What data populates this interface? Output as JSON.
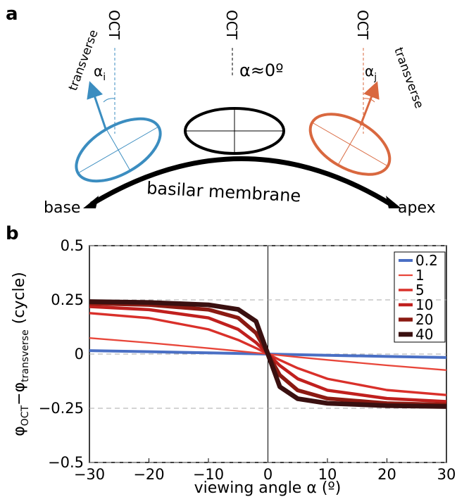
{
  "chart_data": {
    "type": "line",
    "panel_labels": [
      "a",
      "b"
    ],
    "diagram": {
      "oct_labels": [
        "OCT",
        "OCT",
        "OCT"
      ],
      "transverse_labels": [
        "transverse",
        "transverse"
      ],
      "alpha_i": {
        "symbol": "α",
        "sub": "i"
      },
      "alpha_0": "α≈0º",
      "alpha_j": {
        "symbol": "α",
        "sub": "j"
      },
      "base": "base",
      "membrane": "basilar membrane",
      "apex": "apex"
    },
    "xlabel": "viewing angle α (º)",
    "ylabel": {
      "phi1": "φ",
      "sub1": "OCT",
      "phi2": "−φ",
      "sub2": "transverse",
      "unit": "(cycle)"
    },
    "x": [
      -30,
      -20,
      -10,
      -5,
      -2,
      0,
      2,
      5,
      10,
      20,
      30
    ],
    "xlim": [
      -30,
      30
    ],
    "xticks": [
      {
        "value": -30,
        "label": "−30"
      },
      {
        "value": -20,
        "label": "−20"
      },
      {
        "value": -10,
        "label": "−10"
      },
      0,
      10,
      20,
      30
    ],
    "ylim": [
      -0.5,
      0.5
    ],
    "yticks": [
      {
        "value": -0.5,
        "label": "−0.5"
      },
      {
        "value": -0.25,
        "label": "−0.25"
      },
      0,
      0.25,
      0.5
    ],
    "grid": true,
    "legend": "upper right",
    "series": [
      {
        "name": "0.2",
        "color": "#4a6fc4",
        "values": [
          0.016,
          0.011,
          0.0055,
          0.0028,
          0.0011,
          0,
          -0.0011,
          -0.0028,
          -0.0055,
          -0.011,
          -0.016
        ]
      },
      {
        "name": "1",
        "color": "#e8463a",
        "values": [
          0.074,
          0.052,
          0.027,
          0.014,
          0.0056,
          0,
          -0.0056,
          -0.014,
          -0.027,
          -0.052,
          -0.074
        ]
      },
      {
        "name": "5",
        "color": "#d9302a",
        "values": [
          0.189,
          0.166,
          0.114,
          0.065,
          0.0275,
          0,
          -0.0275,
          -0.065,
          -0.114,
          -0.166,
          -0.189
        ]
      },
      {
        "name": "10",
        "color": "#c0201e",
        "values": [
          0.219,
          0.205,
          0.167,
          0.114,
          0.053,
          0,
          -0.053,
          -0.114,
          -0.167,
          -0.205,
          -0.219
        ]
      },
      {
        "name": "20",
        "color": "#8b1a12",
        "values": [
          0.234,
          0.227,
          0.205,
          0.167,
          0.097,
          0,
          -0.097,
          -0.167,
          -0.205,
          -0.227,
          -0.234
        ]
      },
      {
        "name": "40",
        "color": "#3a1010",
        "values": [
          0.242,
          0.238,
          0.227,
          0.206,
          0.151,
          0,
          -0.151,
          -0.206,
          -0.227,
          -0.238,
          -0.242
        ]
      }
    ]
  }
}
